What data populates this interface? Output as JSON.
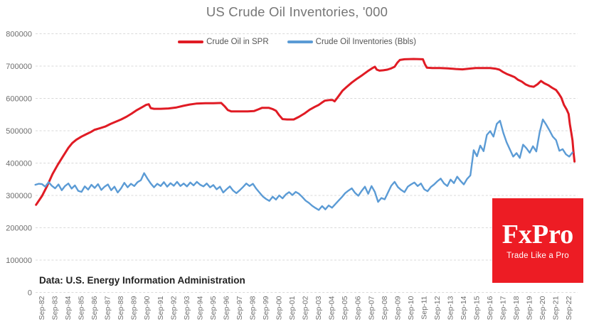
{
  "title": "US Crude Oil Inventories, '000",
  "source_note": "Data: U.S. Energy Information Administration",
  "legend": [
    {
      "label": "Crude Oil in SPR",
      "color": "#e01b24"
    },
    {
      "label": "Crude Oil Inventories (Bbls)",
      "color": "#5b9bd5"
    }
  ],
  "logo": {
    "name": "FxPro",
    "tagline": "Trade Like a Pro",
    "bg": "#ed1c24",
    "fg": "#ffffff"
  },
  "chart_data": {
    "type": "line",
    "title": "US Crude Oil Inventories, '000",
    "xlabel": "",
    "ylabel": "",
    "x_unit": "years since Sep-1982 (weekly data, one tick per year)",
    "value_unit": "thousand barrels ('000)",
    "ylim": [
      0,
      800000
    ],
    "y_ticks": [
      0,
      100000,
      200000,
      300000,
      400000,
      500000,
      600000,
      700000,
      800000
    ],
    "grid": "horizontal-dashed",
    "grid_color": "#d9d9d9",
    "tick_color": "#6e6e6e",
    "legend_position": "top-center",
    "x_tick_labels": [
      "Sep-82",
      "Sep-83",
      "Sep-84",
      "Sep-85",
      "Sep-86",
      "Sep-87",
      "Sep-88",
      "Sep-89",
      "Sep-90",
      "Sep-91",
      "Sep-92",
      "Sep-93",
      "Sep-94",
      "Sep-95",
      "Sep-96",
      "Sep-97",
      "Sep-98",
      "Sep-99",
      "Sep-00",
      "Sep-01",
      "Sep-02",
      "Sep-03",
      "Sep-04",
      "Sep-05",
      "Sep-06",
      "Sep-07",
      "Sep-08",
      "Sep-09",
      "Sep-10",
      "Sep-11",
      "Sep-12",
      "Sep-13",
      "Sep-14",
      "Sep-15",
      "Sep-16",
      "Sep-17",
      "Sep-18",
      "Sep-19",
      "Sep-20",
      "Sep-21",
      "Sep-22"
    ],
    "series": [
      {
        "id": "spr",
        "name": "Crude Oil in SPR",
        "color": "#e01b24",
        "width": 3,
        "points": [
          [
            -0.45,
            271000
          ],
          [
            0,
            298000
          ],
          [
            0.4,
            330000
          ],
          [
            0.8,
            366000
          ],
          [
            1.2,
            395000
          ],
          [
            1.6,
            421000
          ],
          [
            2,
            447000
          ],
          [
            2.3,
            462000
          ],
          [
            2.6,
            472000
          ],
          [
            3,
            482000
          ],
          [
            3.4,
            490000
          ],
          [
            3.7,
            496000
          ],
          [
            4,
            503000
          ],
          [
            4.4,
            508000
          ],
          [
            4.8,
            513000
          ],
          [
            5.2,
            521000
          ],
          [
            5.6,
            528000
          ],
          [
            6,
            535000
          ],
          [
            6.4,
            543000
          ],
          [
            6.8,
            553000
          ],
          [
            7.2,
            564000
          ],
          [
            7.6,
            573000
          ],
          [
            7.9,
            580000
          ],
          [
            8.1,
            582000
          ],
          [
            8.25,
            570000
          ],
          [
            8.5,
            568000
          ],
          [
            9,
            568000
          ],
          [
            9.6,
            569000
          ],
          [
            10.2,
            572000
          ],
          [
            10.7,
            577000
          ],
          [
            11.2,
            581000
          ],
          [
            11.7,
            584000
          ],
          [
            12.4,
            585000
          ],
          [
            13,
            585000
          ],
          [
            13.6,
            586000
          ],
          [
            13.85,
            576000
          ],
          [
            14.1,
            564000
          ],
          [
            14.35,
            560000
          ],
          [
            15,
            560000
          ],
          [
            15.6,
            560000
          ],
          [
            16.1,
            561000
          ],
          [
            16.4,
            566000
          ],
          [
            16.7,
            571000
          ],
          [
            17.2,
            571000
          ],
          [
            17.5,
            567000
          ],
          [
            17.75,
            562000
          ],
          [
            18,
            548000
          ],
          [
            18.25,
            536000
          ],
          [
            18.6,
            535000
          ],
          [
            19.1,
            535000
          ],
          [
            19.5,
            543000
          ],
          [
            19.9,
            553000
          ],
          [
            20.3,
            565000
          ],
          [
            20.7,
            574000
          ],
          [
            21,
            580000
          ],
          [
            21.2,
            586000
          ],
          [
            21.45,
            593000
          ],
          [
            21.8,
            595000
          ],
          [
            22.05,
            595000
          ],
          [
            22.2,
            591000
          ],
          [
            22.5,
            607000
          ],
          [
            22.8,
            624000
          ],
          [
            23.1,
            635000
          ],
          [
            23.5,
            649000
          ],
          [
            23.9,
            661000
          ],
          [
            24.3,
            672000
          ],
          [
            24.7,
            684000
          ],
          [
            25,
            692000
          ],
          [
            25.25,
            698000
          ],
          [
            25.4,
            689000
          ],
          [
            25.6,
            686000
          ],
          [
            25.9,
            687000
          ],
          [
            26.2,
            689000
          ],
          [
            26.5,
            693000
          ],
          [
            26.75,
            698000
          ],
          [
            26.95,
            710000
          ],
          [
            27.15,
            719000
          ],
          [
            27.5,
            721000
          ],
          [
            28.2,
            722000
          ],
          [
            28.9,
            721000
          ],
          [
            29.05,
            706000
          ],
          [
            29.2,
            695000
          ],
          [
            29.6,
            694000
          ],
          [
            30.2,
            694000
          ],
          [
            30.8,
            693000
          ],
          [
            31.4,
            691000
          ],
          [
            31.9,
            690000
          ],
          [
            32.4,
            692000
          ],
          [
            32.9,
            694000
          ],
          [
            33.5,
            694000
          ],
          [
            34,
            694000
          ],
          [
            34.4,
            692000
          ],
          [
            34.7,
            689000
          ],
          [
            35,
            681000
          ],
          [
            35.3,
            675000
          ],
          [
            35.55,
            671000
          ],
          [
            35.85,
            666000
          ],
          [
            36.1,
            658000
          ],
          [
            36.4,
            652000
          ],
          [
            36.7,
            643000
          ],
          [
            37,
            638000
          ],
          [
            37.3,
            636000
          ],
          [
            37.6,
            644000
          ],
          [
            37.85,
            654000
          ],
          [
            38.1,
            647000
          ],
          [
            38.4,
            641000
          ],
          [
            38.7,
            633000
          ],
          [
            39,
            626000
          ],
          [
            39.2,
            615000
          ],
          [
            39.4,
            602000
          ],
          [
            39.6,
            580000
          ],
          [
            39.8,
            566000
          ],
          [
            39.95,
            552000
          ],
          [
            40.05,
            520000
          ],
          [
            40.15,
            495000
          ],
          [
            40.25,
            470000
          ],
          [
            40.32,
            436000
          ],
          [
            40.4,
            405000
          ]
        ]
      },
      {
        "id": "inventories",
        "name": "Crude Oil Inventories (Bbls)",
        "color": "#5b9bd5",
        "width": 2.4,
        "x_start": -0.5,
        "x_step": 0.25,
        "values": [
          333000,
          336000,
          335000,
          327000,
          341000,
          330000,
          322000,
          334000,
          316000,
          329000,
          337000,
          321000,
          331000,
          314000,
          311000,
          328000,
          318000,
          333000,
          323000,
          335000,
          317000,
          327000,
          334000,
          316000,
          327000,
          309000,
          322000,
          339000,
          325000,
          336000,
          329000,
          341000,
          347000,
          369000,
          352000,
          337000,
          325000,
          336000,
          329000,
          341000,
          327000,
          338000,
          330000,
          342000,
          329000,
          337000,
          328000,
          340000,
          331000,
          342000,
          333000,
          328000,
          337000,
          325000,
          332000,
          319000,
          327000,
          309000,
          319000,
          328000,
          315000,
          307000,
          316000,
          326000,
          337000,
          329000,
          336000,
          321000,
          309000,
          297000,
          289000,
          283000,
          296000,
          287000,
          300000,
          291000,
          303000,
          310000,
          301000,
          311000,
          305000,
          295000,
          284000,
          277000,
          268000,
          261000,
          255000,
          267000,
          257000,
          269000,
          262000,
          273000,
          284000,
          295000,
          307000,
          315000,
          322000,
          308000,
          299000,
          314000,
          327000,
          305000,
          329000,
          311000,
          280000,
          292000,
          288000,
          309000,
          330000,
          342000,
          326000,
          317000,
          310000,
          327000,
          334000,
          340000,
          329000,
          337000,
          319000,
          313000,
          326000,
          334000,
          344000,
          352000,
          337000,
          329000,
          349000,
          338000,
          358000,
          345000,
          334000,
          351000,
          362000,
          440000,
          421000,
          454000,
          437000,
          487000,
          499000,
          482000,
          521000,
          531000,
          493000,
          464000,
          442000,
          420000,
          431000,
          416000,
          457000,
          446000,
          432000,
          452000,
          436000,
          494000,
          535000,
          519000,
          501000,
          482000,
          471000,
          438000,
          443000,
          427000,
          420000,
          433000
        ]
      }
    ]
  }
}
